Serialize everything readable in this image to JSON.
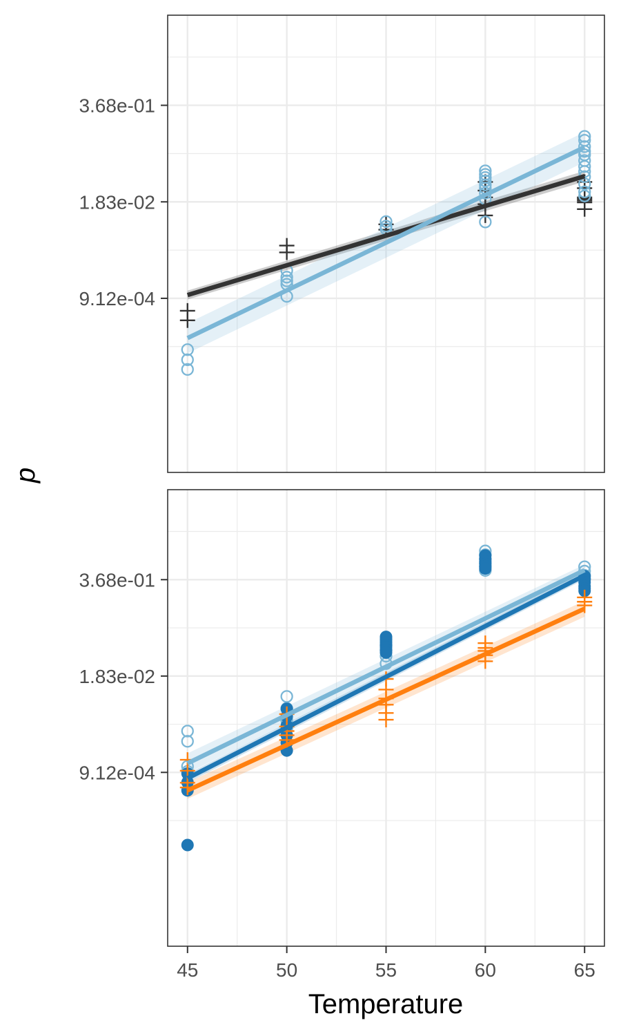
{
  "chart_data": {
    "type": "scatter",
    "xlabel": "Temperature",
    "ylabel": "p",
    "x_ticks": [
      "45",
      "50",
      "55",
      "60",
      "65"
    ],
    "y_ticks": [
      "3.68e-01",
      "1.83e-02",
      "9.12e-04"
    ],
    "y_scale": "log",
    "xlim": [
      44,
      66
    ],
    "ylim": [
      4.07e-06,
      6.06
    ],
    "grid": true,
    "legend": "none",
    "panels": [
      {
        "series": [
          {
            "color": "#333333",
            "marker": "plus",
            "points": [
              [
                45,
                0.00062
              ],
              [
                45,
                0.00046
              ],
              [
                50,
                0.0047
              ],
              [
                50,
                0.0038
              ],
              [
                55,
                0.0091
              ],
              [
                55,
                0.0077
              ],
              [
                60,
                0.034
              ],
              [
                60,
                0.026
              ],
              [
                60,
                0.021
              ],
              [
                60,
                0.017
              ],
              [
                60,
                0.012
              ],
              [
                65,
                0.034
              ],
              [
                65,
                0.028
              ],
              [
                65,
                0.021
              ],
              [
                65,
                0.02
              ],
              [
                65,
                0.019
              ],
              [
                65,
                0.018
              ],
              [
                65,
                0.0146
              ]
            ],
            "fit": [
              [
                45,
                0.00101
              ],
              [
                65,
                0.0406
              ]
            ],
            "band": {
              "lo": [
                [
                  45,
                  0.00088
                ],
                [
                  65,
                  0.0344
                ]
              ],
              "hi": [
                [
                  45,
                  0.00116
                ],
                [
                  65,
                  0.0479
                ]
              ]
            }
          },
          {
            "color": "#7ab6d6",
            "marker": "open-circle",
            "points": [
              [
                45,
                0.000185
              ],
              [
                45,
                0.000135
              ],
              [
                45,
                0.0001
              ],
              [
                50,
                0.00216
              ],
              [
                50,
                0.00176
              ],
              [
                50,
                0.00157
              ],
              [
                50,
                0.00141
              ],
              [
                50,
                0.00097
              ],
              [
                55,
                0.0099
              ],
              [
                55,
                0.0086
              ],
              [
                55,
                0.0079
              ],
              [
                60,
                0.048
              ],
              [
                60,
                0.043
              ],
              [
                60,
                0.039
              ],
              [
                60,
                0.035
              ],
              [
                60,
                0.031
              ],
              [
                60,
                0.028
              ],
              [
                60,
                0.024
              ],
              [
                60,
                0.02
              ],
              [
                60,
                0.0098
              ],
              [
                65,
                0.14
              ],
              [
                65,
                0.124
              ],
              [
                65,
                0.102
              ],
              [
                65,
                0.088
              ],
              [
                65,
                0.079
              ],
              [
                65,
                0.066
              ],
              [
                65,
                0.055
              ],
              [
                65,
                0.047
              ],
              [
                65,
                0.04
              ],
              [
                65,
                0.032
              ],
              [
                65,
                0.025
              ],
              [
                65,
                0.022
              ]
            ],
            "fit": [
              [
                45,
                0.000265
              ],
              [
                65,
                0.1
              ]
            ],
            "band": {
              "lo": [
                [
                  45,
                  0.000165
                ],
                [
                  65,
                  0.063
                ]
              ],
              "hi": [
                [
                  45,
                  0.00042
                ],
                [
                  65,
                  0.16
                ]
              ]
            }
          }
        ]
      },
      {
        "series": [
          {
            "color": "#7ab6d6",
            "marker": "open-circle",
            "points": [
              [
                45,
                0.0033
              ],
              [
                45,
                0.0024
              ],
              [
                45,
                0.0011
              ],
              [
                45,
                0.00094
              ],
              [
                50,
                0.0097
              ],
              [
                50,
                0.0067
              ],
              [
                50,
                0.0046
              ],
              [
                50,
                0.0036
              ],
              [
                55,
                0.055
              ],
              [
                55,
                0.048
              ],
              [
                55,
                0.041
              ],
              [
                55,
                0.034
              ],
              [
                55,
                0.027
              ],
              [
                60,
                0.9
              ],
              [
                60,
                0.8
              ],
              [
                60,
                0.7
              ],
              [
                60,
                0.62
              ],
              [
                60,
                0.55
              ],
              [
                60,
                0.49
              ],
              [
                65,
                0.55
              ],
              [
                65,
                0.48
              ],
              [
                65,
                0.42
              ],
              [
                65,
                0.38
              ]
            ],
            "fit": [
              [
                45,
                0.00121
              ],
              [
                65,
                0.495
              ]
            ],
            "band": {
              "lo": [
                [
                  45,
                  0.00089
                ],
                [
                  65,
                  0.415
                ]
              ],
              "hi": [
                [
                  45,
                  0.00165
                ],
                [
                  65,
                  0.59
                ]
              ]
            }
          },
          {
            "color": "#1f77b4",
            "marker": "filled-circle",
            "points": [
              [
                45,
                0.00088
              ],
              [
                45,
                0.00067
              ],
              [
                45,
                0.00052
              ],
              [
                45,
                9.5e-05
              ],
              [
                50,
                0.0066
              ],
              [
                50,
                0.0052
              ],
              [
                50,
                0.0039
              ],
              [
                50,
                0.0029
              ],
              [
                50,
                0.0023
              ],
              [
                50,
                0.0018
              ],
              [
                55,
                0.062
              ],
              [
                55,
                0.058
              ],
              [
                55,
                0.052
              ],
              [
                55,
                0.048
              ],
              [
                55,
                0.045
              ],
              [
                55,
                0.041
              ],
              [
                55,
                0.038
              ],
              [
                60,
                0.78
              ],
              [
                60,
                0.7
              ],
              [
                60,
                0.65
              ],
              [
                60,
                0.6
              ],
              [
                60,
                0.56
              ],
              [
                60,
                0.52
              ],
              [
                65,
                0.41
              ],
              [
                65,
                0.37
              ],
              [
                65,
                0.34
              ],
              [
                65,
                0.3
              ],
              [
                65,
                0.28
              ],
              [
                65,
                0.26
              ]
            ],
            "fit": [
              [
                45,
                0.00076
              ],
              [
                65,
                0.42
              ]
            ],
            "band": {
              "lo": [
                [
                  45,
                  0.00066
                ],
                [
                  65,
                  0.372
                ]
              ],
              "hi": [
                [
                  45,
                  0.00087
                ],
                [
                  65,
                  0.475
                ]
              ]
            }
          },
          {
            "color": "#ff7f0e",
            "marker": "plus",
            "points": [
              [
                45,
                0.00135
              ],
              [
                45,
                0.00096
              ],
              [
                45,
                0.00066
              ],
              [
                45,
                0.00057
              ],
              [
                50,
                0.0056
              ],
              [
                50,
                0.0038
              ],
              [
                50,
                0.0033
              ],
              [
                50,
                0.0029
              ],
              [
                50,
                0.0025
              ],
              [
                55,
                0.0167
              ],
              [
                55,
                0.012
              ],
              [
                55,
                0.0091
              ],
              [
                55,
                0.0075
              ],
              [
                55,
                0.0058
              ],
              [
                55,
                0.0047
              ],
              [
                60,
                0.051
              ],
              [
                60,
                0.044
              ],
              [
                60,
                0.04
              ],
              [
                60,
                0.035
              ],
              [
                60,
                0.029
              ],
              [
                65,
                0.212
              ],
              [
                65,
                0.185
              ],
              [
                65,
                0.165
              ]
            ],
            "fit": [
              [
                45,
                0.00052
              ],
              [
                65,
                0.149
              ]
            ],
            "band": {
              "lo": [
                [
                  45,
                  0.0004
                ],
                [
                  65,
                  0.116
                ]
              ],
              "hi": [
                [
                  45,
                  0.00067
                ],
                [
                  65,
                  0.19
                ]
              ]
            }
          }
        ]
      }
    ]
  }
}
